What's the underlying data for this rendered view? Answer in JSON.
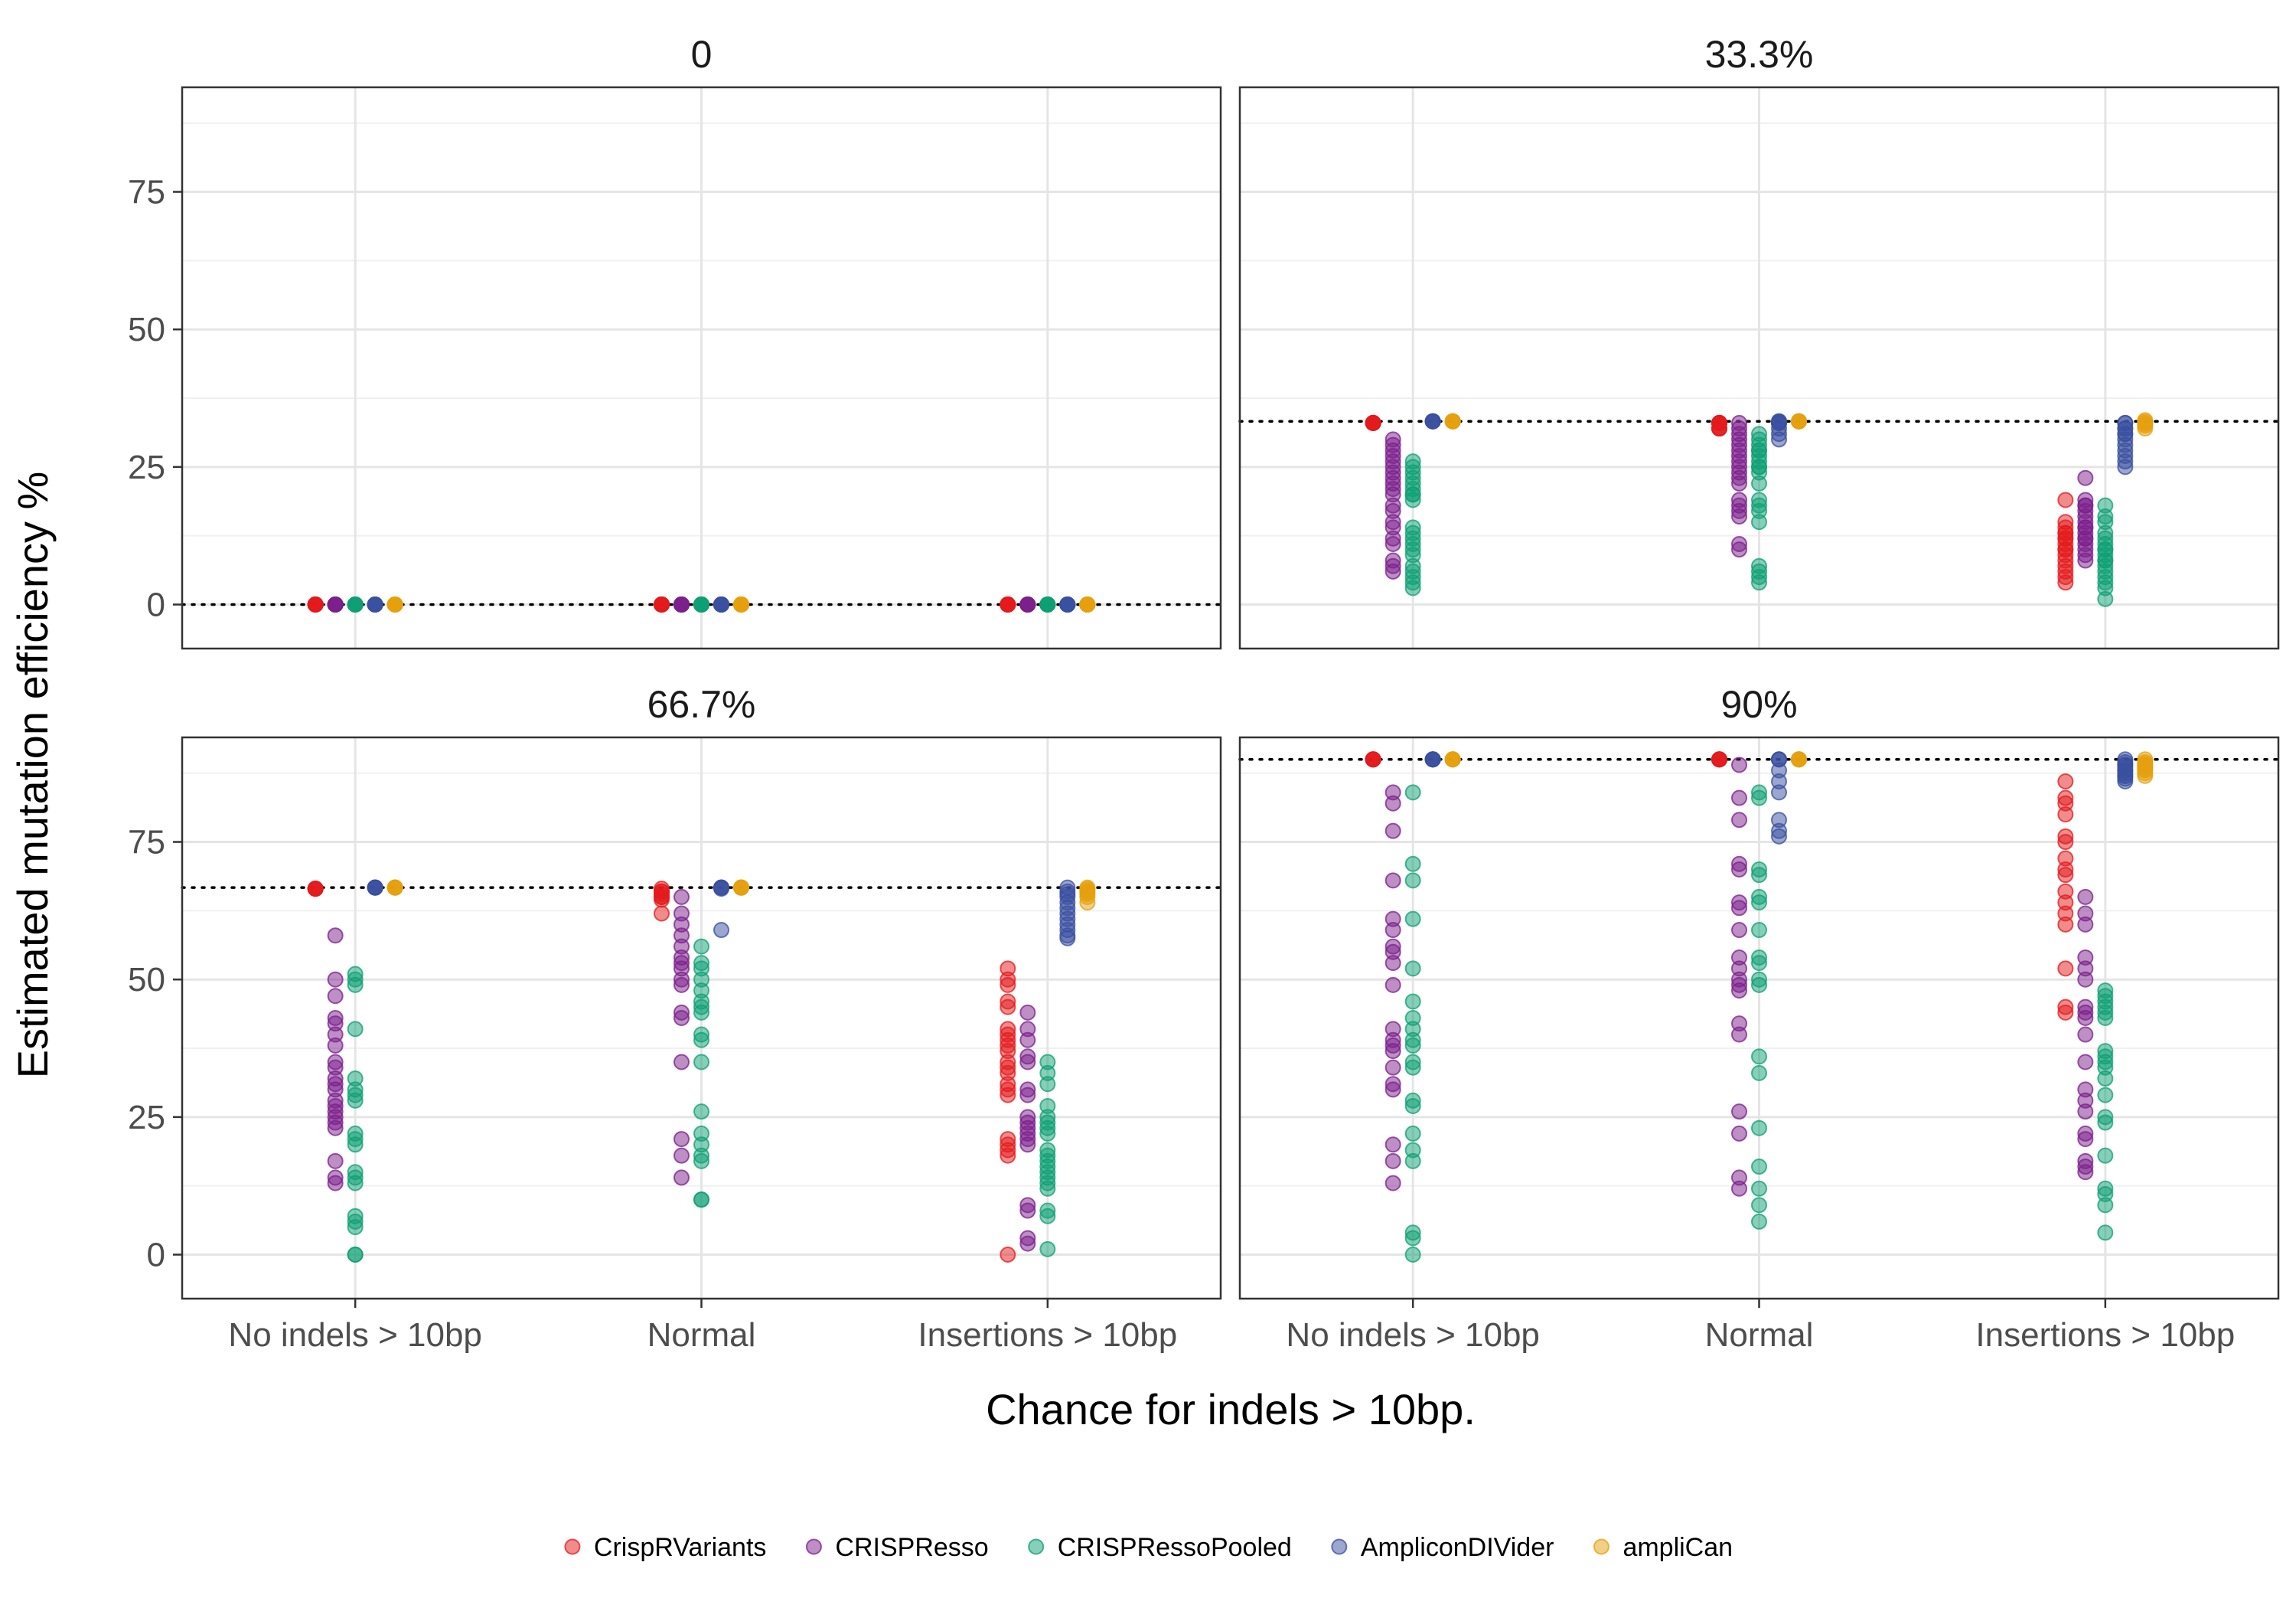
{
  "chart_data": {
    "type": "scatter",
    "xlabel": "Chance for indels > 10bp.",
    "ylabel": "Estimated mutation efficiency %",
    "categories": [
      "No indels > 10bp",
      "Normal",
      "Insertions > 10bp"
    ],
    "ylim": [
      -8,
      94
    ],
    "yticks": [
      0,
      25,
      50,
      75
    ],
    "grid": true,
    "legend_position": "bottom",
    "series": [
      {
        "name": "CrispRVariants",
        "color": "#E41A1C"
      },
      {
        "name": "CRISPResso",
        "color": "#7B1F8C"
      },
      {
        "name": "CRISPRessoPooled",
        "color": "#0E9F73"
      },
      {
        "name": "AmpliconDIVider",
        "color": "#3A4FA0"
      },
      {
        "name": "ampliCan",
        "color": "#E5A00D"
      }
    ],
    "panels": [
      {
        "title": "0",
        "reference": 0,
        "values": {
          "CrispRVariants": [
            [
              0,
              0,
              0,
              0,
              0,
              0,
              0,
              0,
              0,
              0,
              0,
              0
            ],
            [
              0,
              0,
              0,
              0,
              0,
              0,
              0,
              0,
              0,
              0,
              0,
              0
            ],
            [
              0,
              0,
              0,
              0,
              0,
              0,
              0,
              0,
              0,
              0,
              0,
              0
            ]
          ],
          "CRISPResso": [
            [
              0,
              0,
              0,
              0,
              0,
              0,
              0,
              0,
              0,
              0,
              0,
              0
            ],
            [
              0,
              0,
              0,
              0,
              0,
              0,
              0,
              0,
              0,
              0,
              0,
              0
            ],
            [
              0,
              0,
              0,
              0,
              0,
              0,
              0,
              0,
              0,
              0,
              0,
              0
            ]
          ],
          "CRISPRessoPooled": [
            [
              0,
              0,
              0,
              0,
              0,
              0,
              0,
              0,
              0,
              0,
              0,
              0
            ],
            [
              0,
              0,
              0,
              0,
              0,
              0,
              0,
              0,
              0,
              0,
              0,
              0
            ],
            [
              0,
              0,
              0,
              0,
              0,
              0,
              0,
              0,
              0,
              0,
              0,
              0
            ]
          ],
          "AmpliconDIVider": [
            [
              0,
              0,
              0,
              0,
              0,
              0,
              0,
              0,
              0,
              0,
              0,
              0
            ],
            [
              0,
              0,
              0,
              0,
              0,
              0,
              0,
              0,
              0,
              0,
              0,
              0
            ],
            [
              0,
              0,
              0,
              0,
              0,
              0,
              0,
              0,
              0,
              0,
              0,
              0
            ]
          ],
          "ampliCan": [
            [
              0,
              0,
              0,
              0,
              0,
              0,
              0,
              0,
              0,
              0,
              0,
              0
            ],
            [
              0,
              0,
              0,
              0,
              0,
              0,
              0,
              0,
              0,
              0,
              0,
              0
            ],
            [
              0,
              0,
              0,
              0,
              0,
              0,
              0,
              0,
              0,
              0,
              0,
              0
            ]
          ]
        }
      },
      {
        "title": "33.3%",
        "reference": 33.3,
        "values": {
          "CrispRVariants": [
            [
              33,
              33,
              33,
              33,
              33,
              33,
              33,
              33
            ],
            [
              33,
              32,
              33,
              32,
              33,
              33,
              32,
              33,
              33,
              32
            ],
            [
              19,
              15,
              14,
              13,
              12,
              11,
              10,
              9,
              8,
              7,
              6,
              5,
              4,
              13,
              12,
              10
            ]
          ],
          "CRISPResso": [
            [
              30,
              28,
              26,
              25,
              24,
              23,
              22,
              20,
              18,
              17,
              15,
              14,
              12,
              11,
              8,
              7,
              6,
              29,
              27,
              21
            ],
            [
              33,
              32,
              31,
              30,
              29,
              28,
              27,
              25,
              24,
              23,
              22,
              19,
              18,
              17,
              16,
              11,
              10,
              26
            ],
            [
              23,
              19,
              18,
              17,
              16,
              15,
              14,
              13,
              12,
              11,
              10,
              9,
              8,
              18,
              14,
              12
            ]
          ],
          "CRISPRessoPooled": [
            [
              26,
              25,
              24,
              22,
              21,
              20,
              19,
              14,
              13,
              12,
              11,
              10,
              9,
              7,
              6,
              5,
              4,
              3,
              23,
              20
            ],
            [
              31,
              30,
              29,
              28,
              27,
              26,
              25,
              24,
              22,
              19,
              18,
              17,
              15,
              7,
              6,
              5,
              4,
              28,
              25
            ],
            [
              18,
              16,
              15,
              13,
              12,
              11,
              10,
              9,
              8,
              7,
              6,
              5,
              4,
              3,
              1,
              10,
              8
            ]
          ],
          "AmpliconDIVider": [
            [
              33.3,
              33.3,
              33.3,
              33.3,
              33.3,
              33.3
            ],
            [
              33.3,
              33.3,
              33,
              32,
              31,
              30,
              33,
              33
            ],
            [
              33,
              32,
              31,
              30,
              29,
              28,
              27,
              26,
              25,
              33,
              32,
              31
            ]
          ],
          "ampliCan": [
            [
              33.3,
              33.3,
              33.3,
              33.3,
              33.3,
              33.3
            ],
            [
              33.3,
              33.3,
              33.3,
              33.3,
              33.3,
              33.3
            ],
            [
              33.5,
              33,
              32.5,
              32,
              33.2,
              32.8
            ]
          ]
        }
      },
      {
        "title": "66.7%",
        "reference": 66.7,
        "values": {
          "CrispRVariants": [
            [
              66.5,
              66.5,
              66.5,
              66.5,
              66.5,
              66.5
            ],
            [
              66.5,
              66,
              65.5,
              65,
              64.5,
              62,
              66,
              65
            ],
            [
              52,
              50,
              49,
              46,
              45,
              41,
              40,
              39,
              38,
              37,
              35,
              34,
              33,
              31,
              30,
              29,
              21,
              20,
              19,
              18,
              0
            ]
          ],
          "CRISPResso": [
            [
              58,
              50,
              47,
              43,
              42,
              40,
              38,
              35,
              34,
              32,
              31,
              30,
              28,
              27,
              26,
              25,
              24,
              23,
              17,
              14,
              13
            ],
            [
              65,
              62,
              60,
              58,
              56,
              54,
              53,
              52,
              50,
              49,
              44,
              43,
              35,
              21,
              18,
              14
            ],
            [
              44,
              41,
              39,
              36,
              35,
              30,
              29,
              25,
              24,
              23,
              22,
              21,
              20,
              9,
              8,
              3,
              2
            ]
          ],
          "CRISPRessoPooled": [
            [
              51,
              50,
              49,
              41,
              32,
              30,
              29,
              28,
              22,
              21,
              20,
              15,
              14,
              13,
              7,
              6,
              5,
              0,
              0
            ],
            [
              56,
              53,
              52,
              50,
              48,
              46,
              45,
              44,
              40,
              39,
              35,
              26,
              22,
              20,
              18,
              17,
              10,
              10
            ],
            [
              35,
              33,
              31,
              27,
              25,
              24,
              23,
              22,
              19,
              18,
              17,
              16,
              15,
              14,
              13,
              12,
              8,
              7,
              1
            ]
          ],
          "AmpliconDIVider": [
            [
              66.7,
              66.7,
              66.7,
              66.7,
              66.7,
              66.7
            ],
            [
              66.7,
              66.7,
              66.7,
              66.7,
              59,
              66.5
            ],
            [
              66.7,
              66,
              65,
              64,
              63,
              62,
              61,
              60,
              59,
              58,
              57.5,
              65.5
            ]
          ],
          "ampliCan": [
            [
              66.7,
              66.7,
              66.7,
              66.7,
              66.7,
              66.7
            ],
            [
              66.7,
              66.7,
              66.7,
              66.7,
              66.7,
              66.7
            ],
            [
              66.7,
              66.5,
              66,
              65.5,
              65,
              64,
              66.2,
              65.8
            ]
          ]
        }
      },
      {
        "title": "90%",
        "reference": 90,
        "values": {
          "CrispRVariants": [
            [
              90,
              90,
              90,
              90,
              90,
              90
            ],
            [
              90,
              90,
              90,
              90,
              90,
              90
            ],
            [
              86,
              83,
              82,
              80,
              76,
              75,
              72,
              70,
              69,
              66,
              64,
              62,
              60,
              52,
              45,
              44
            ]
          ],
          "CRISPResso": [
            [
              84,
              82,
              77,
              68,
              61,
              59,
              56,
              55,
              53,
              49,
              41,
              39,
              38,
              37,
              34,
              31,
              30,
              20,
              17,
              13
            ],
            [
              89,
              83,
              79,
              71,
              70,
              64,
              63,
              59,
              54,
              52,
              50,
              49,
              48,
              42,
              40,
              26,
              22,
              14,
              12
            ],
            [
              65,
              62,
              60,
              54,
              52,
              50,
              45,
              44,
              43,
              40,
              35,
              30,
              28,
              26,
              22,
              21,
              17,
              16,
              15
            ]
          ],
          "CRISPRessoPooled": [
            [
              84,
              71,
              68,
              61,
              52,
              46,
              43,
              41,
              39,
              38,
              35,
              34,
              28,
              27,
              22,
              19,
              17,
              4,
              3,
              0
            ],
            [
              84,
              83,
              70,
              69,
              65,
              64,
              59,
              54,
              53,
              50,
              49,
              36,
              33,
              23,
              16,
              12,
              9,
              6
            ],
            [
              48,
              47,
              46,
              45,
              44,
              43,
              37,
              36,
              35,
              34,
              32,
              29,
              25,
              24,
              18,
              12,
              11,
              9,
              4
            ]
          ],
          "AmpliconDIVider": [
            [
              90,
              90,
              90,
              90,
              90,
              90
            ],
            [
              90,
              90,
              88,
              86,
              84,
              79,
              77,
              76,
              90
            ],
            [
              90,
              89.5,
              89,
              88.5,
              88,
              87.5,
              87,
              86.5,
              86,
              89,
              88,
              87
            ]
          ],
          "ampliCan": [
            [
              90,
              90,
              90,
              90,
              90,
              90
            ],
            [
              90,
              90,
              90,
              90,
              90,
              90
            ],
            [
              90,
              89.5,
              89,
              88.5,
              88,
              87.5,
              87,
              89.2,
              88.8,
              88.2
            ]
          ]
        }
      }
    ]
  }
}
